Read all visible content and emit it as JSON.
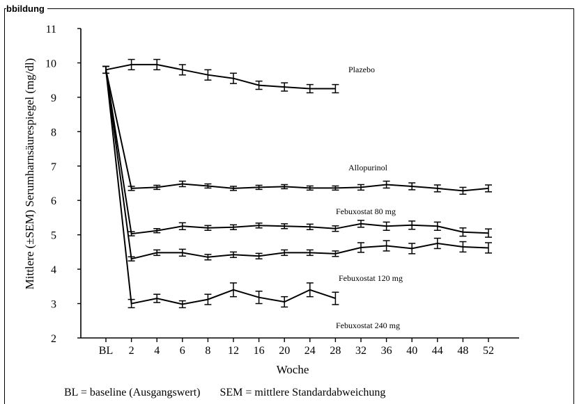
{
  "figure_label": "bbildung",
  "footnote": {
    "bl": "BL = baseline (Ausgangswert)",
    "sem": "SEM = mittlere Standardabweichung"
  },
  "chart_data": {
    "type": "line",
    "title": "",
    "xlabel": "Woche",
    "ylabel": "Mittlere (±SEM) Serumharnsäurespiegel (mg/dl)",
    "categories": [
      "BL",
      "2",
      "4",
      "6",
      "8",
      "12",
      "16",
      "20",
      "24",
      "28",
      "32",
      "36",
      "40",
      "44",
      "48",
      "52"
    ],
    "ylim": [
      2,
      11
    ],
    "yticks": [
      2,
      3,
      4,
      5,
      6,
      7,
      8,
      9,
      10,
      11
    ],
    "grid": false,
    "legend": "labels-inline",
    "series": [
      {
        "name": "Plazebo",
        "values": [
          9.8,
          9.95,
          9.95,
          9.8,
          9.65,
          9.55,
          9.35,
          9.3,
          9.25,
          9.25,
          null,
          null,
          null,
          null,
          null,
          null
        ],
        "errors": [
          0.1,
          0.15,
          0.15,
          0.15,
          0.15,
          0.15,
          0.12,
          0.12,
          0.12,
          0.12,
          null,
          null,
          null,
          null,
          null,
          null
        ]
      },
      {
        "name": "Allopurinol",
        "values": [
          9.8,
          6.35,
          6.38,
          6.48,
          6.42,
          6.35,
          6.38,
          6.4,
          6.36,
          6.36,
          6.38,
          6.46,
          6.41,
          6.35,
          6.28,
          6.35
        ],
        "errors": [
          0.1,
          0.06,
          0.06,
          0.08,
          0.06,
          0.06,
          0.06,
          0.06,
          0.06,
          0.06,
          0.08,
          0.1,
          0.1,
          0.1,
          0.1,
          0.1
        ]
      },
      {
        "name": "Febuxostat 80 mg",
        "values": [
          9.8,
          5.03,
          5.12,
          5.25,
          5.2,
          5.22,
          5.27,
          5.25,
          5.23,
          5.18,
          5.32,
          5.25,
          5.28,
          5.25,
          5.08,
          5.05
        ],
        "errors": [
          0.1,
          0.06,
          0.06,
          0.1,
          0.07,
          0.07,
          0.07,
          0.07,
          0.08,
          0.08,
          0.1,
          0.12,
          0.12,
          0.12,
          0.12,
          0.12
        ]
      },
      {
        "name": "Febuxostat 120 mg",
        "values": [
          9.8,
          4.3,
          4.48,
          4.48,
          4.35,
          4.42,
          4.38,
          4.48,
          4.48,
          4.45,
          4.63,
          4.68,
          4.6,
          4.75,
          4.65,
          4.62
        ],
        "errors": [
          0.1,
          0.06,
          0.08,
          0.1,
          0.08,
          0.08,
          0.08,
          0.08,
          0.08,
          0.08,
          0.14,
          0.15,
          0.15,
          0.15,
          0.15,
          0.15
        ]
      },
      {
        "name": "Febuxostat 240 mg",
        "values": [
          9.8,
          3.0,
          3.15,
          2.98,
          3.12,
          3.4,
          3.18,
          3.05,
          3.4,
          3.15,
          null,
          null,
          null,
          null,
          null,
          null
        ],
        "errors": [
          0.1,
          0.12,
          0.12,
          0.1,
          0.15,
          0.2,
          0.18,
          0.15,
          0.2,
          0.18,
          null,
          null,
          null,
          null,
          null,
          null
        ]
      }
    ]
  }
}
